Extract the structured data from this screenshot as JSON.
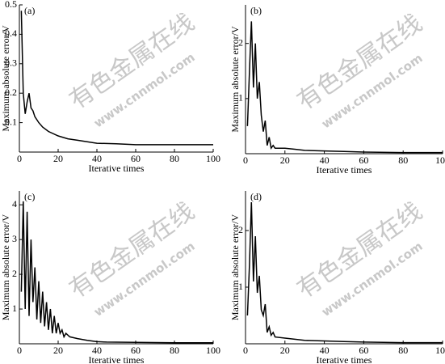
{
  "watermark": {
    "cn": "有色金属在线",
    "url": "www.cnnmol.com"
  },
  "chart_data": [
    {
      "type": "line",
      "title": "(a)",
      "x_label": "Iterative times",
      "y_label": "Maximum absolute error/V",
      "xlim": [
        0,
        100
      ],
      "xticks": [
        0,
        20,
        40,
        60,
        80,
        100
      ],
      "ylim": [
        0,
        0.5
      ],
      "yticks": [
        0.1,
        0.2,
        0.3,
        0.4,
        0.5
      ],
      "series": [
        {
          "color": "#000000",
          "x": [
            1,
            2,
            3,
            4,
            5,
            6,
            7,
            8,
            10,
            12,
            15,
            20,
            25,
            30,
            35,
            40,
            50,
            60,
            70,
            80,
            90,
            100
          ],
          "values": [
            0.48,
            0.2,
            0.13,
            0.17,
            0.2,
            0.15,
            0.14,
            0.12,
            0.1,
            0.085,
            0.07,
            0.055,
            0.045,
            0.04,
            0.035,
            0.03,
            0.028,
            0.025,
            0.025,
            0.025,
            0.025,
            0.025
          ]
        }
      ]
    },
    {
      "type": "line",
      "title": "(b)",
      "x_label": "Iterative times",
      "y_label": "Maximum absolute error/V",
      "xlim": [
        0,
        100
      ],
      "xticks": [
        0,
        20,
        40,
        60,
        80,
        100
      ],
      "ylim": [
        0,
        2.7
      ],
      "yticks": [
        1,
        2
      ],
      "series": [
        {
          "color": "#000000",
          "x": [
            1,
            2,
            3,
            4,
            5,
            6,
            7,
            8,
            9,
            10,
            11,
            12,
            13,
            14,
            15,
            20,
            25,
            30,
            40,
            50,
            60,
            80,
            100
          ],
          "values": [
            0.5,
            1.5,
            2.4,
            1.2,
            2.0,
            1.0,
            1.3,
            0.7,
            0.4,
            0.6,
            0.15,
            0.3,
            0.1,
            0.15,
            0.1,
            0.1,
            0.08,
            0.06,
            0.05,
            0.04,
            0.03,
            0.02,
            0.02
          ]
        }
      ]
    },
    {
      "type": "line",
      "title": "(c)",
      "x_label": "Iterative times",
      "y_label": "Maximum absolute error/V",
      "xlim": [
        0,
        100
      ],
      "xticks": [
        0,
        20,
        40,
        60,
        80,
        100
      ],
      "ylim": [
        0,
        4.4
      ],
      "yticks": [
        1,
        2,
        3,
        4
      ],
      "series": [
        {
          "color": "#000000",
          "x": [
            1,
            2,
            3,
            4,
            5,
            6,
            7,
            8,
            9,
            10,
            11,
            12,
            13,
            14,
            15,
            16,
            17,
            18,
            19,
            20,
            21,
            22,
            23,
            24,
            26,
            30,
            35,
            40,
            45,
            60,
            80,
            100
          ],
          "values": [
            1.5,
            4.1,
            1.0,
            3.8,
            0.8,
            3.0,
            1.2,
            2.2,
            0.7,
            1.8,
            0.6,
            1.5,
            0.5,
            1.2,
            0.4,
            1.0,
            0.3,
            0.8,
            0.3,
            0.6,
            0.3,
            0.4,
            0.2,
            0.3,
            0.2,
            0.15,
            0.1,
            0.06,
            0.05,
            0.04,
            0.03,
            0.03
          ]
        }
      ]
    },
    {
      "type": "line",
      "title": "(d)",
      "x_label": "Iterative times",
      "y_label": "Maximum absolute error/V",
      "xlim": [
        0,
        100
      ],
      "xticks": [
        0,
        20,
        40,
        60,
        80,
        100
      ],
      "ylim": [
        0,
        2.7
      ],
      "yticks": [
        1,
        2
      ],
      "series": [
        {
          "color": "#000000",
          "x": [
            1,
            2,
            3,
            4,
            5,
            6,
            7,
            8,
            9,
            10,
            11,
            12,
            13,
            14,
            15,
            20,
            25,
            30,
            40,
            50,
            60,
            80,
            100
          ],
          "values": [
            0.5,
            1.4,
            2.5,
            1.1,
            1.9,
            0.9,
            1.2,
            0.6,
            0.5,
            0.7,
            0.2,
            0.3,
            0.15,
            0.2,
            0.12,
            0.1,
            0.08,
            0.06,
            0.05,
            0.04,
            0.03,
            0.02,
            0.02
          ]
        }
      ]
    }
  ]
}
